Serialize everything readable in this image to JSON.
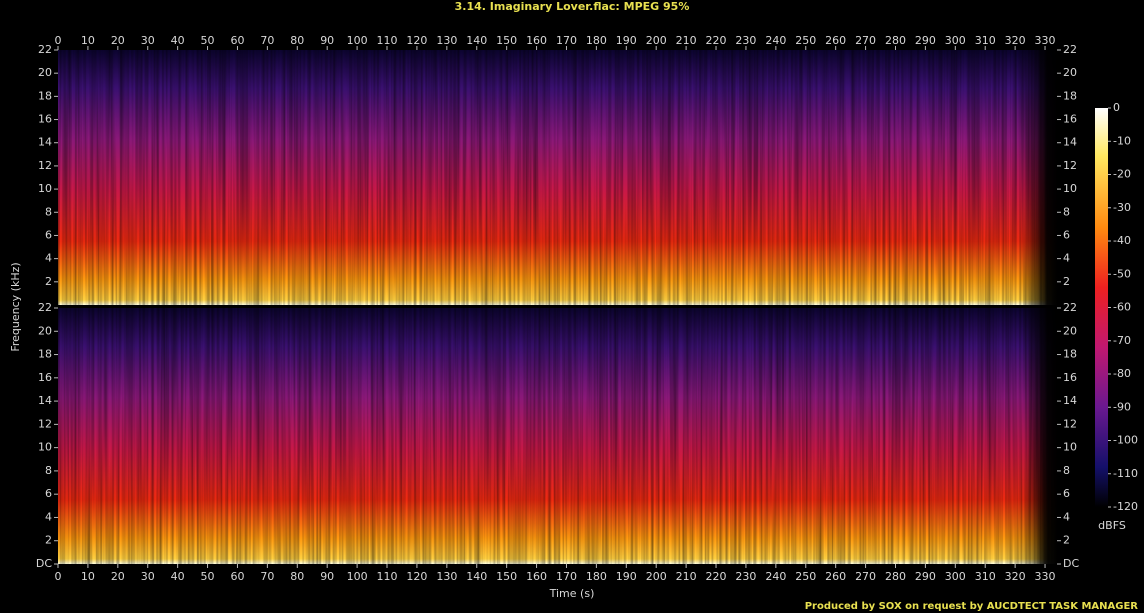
{
  "chart_data": {
    "type": "spectrogram",
    "title": "3.14. Imaginary Lover.flac: MPEG 95%",
    "x_label": "Time (s)",
    "y_label": "Frequency (kHz)",
    "xlim": [
      0,
      334
    ],
    "xticks": [
      0,
      10,
      20,
      30,
      40,
      50,
      60,
      70,
      80,
      90,
      100,
      110,
      120,
      130,
      140,
      150,
      160,
      170,
      180,
      190,
      200,
      210,
      220,
      230,
      240,
      250,
      260,
      270,
      280,
      290,
      300,
      310,
      320,
      330
    ],
    "channels": [
      {
        "ylim": [
          0,
          22
        ],
        "yticks": [
          2,
          4,
          6,
          8,
          10,
          12,
          14,
          16,
          18,
          20,
          22
        ]
      },
      {
        "ylim": [
          0,
          22
        ],
        "yticks": [
          {
            "value": 0,
            "label": "DC"
          },
          2,
          4,
          6,
          8,
          10,
          12,
          14,
          16,
          18,
          20,
          22
        ]
      }
    ],
    "colorbar": {
      "label": "dBFS",
      "lim": [
        -120,
        0
      ],
      "ticks": [
        0,
        -10,
        -20,
        -30,
        -40,
        -50,
        -60,
        -70,
        -80,
        -90,
        -100,
        -110,
        -120
      ]
    }
  },
  "footer": "Produced by SOX on request by AUCDTECT TASK MANAGER"
}
